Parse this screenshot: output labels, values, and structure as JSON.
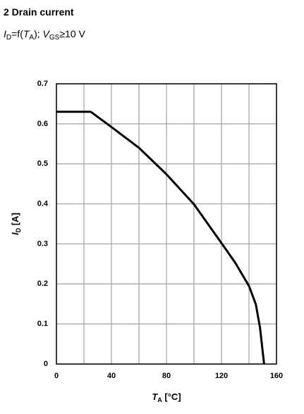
{
  "chart_data": {
    "type": "line",
    "title": "2 Drain current",
    "subtitle": [
      "I",
      "D",
      "=f(",
      "T",
      "A",
      "); ",
      "V",
      "GS",
      "≥10 V"
    ],
    "xlabel": [
      "T",
      "A",
      " [°C]"
    ],
    "ylabel": [
      "I",
      "D",
      " [A]"
    ],
    "x": [
      0,
      25,
      40,
      60,
      80,
      100,
      120,
      130,
      140,
      145,
      148,
      150,
      151
    ],
    "values": [
      0.63,
      0.63,
      0.592,
      0.54,
      0.474,
      0.399,
      0.302,
      0.253,
      0.195,
      0.149,
      0.091,
      0.03,
      0
    ],
    "color": "#000000",
    "xlim": [
      0,
      160
    ],
    "xticks": [
      0,
      40,
      80,
      120,
      160
    ],
    "xminor": [
      20,
      60,
      100,
      140
    ],
    "ylim": [
      0,
      0.7
    ],
    "yticks": [
      0,
      0.1,
      0.2,
      0.3,
      0.4,
      0.5,
      0.6,
      0.7
    ],
    "grid": true
  }
}
